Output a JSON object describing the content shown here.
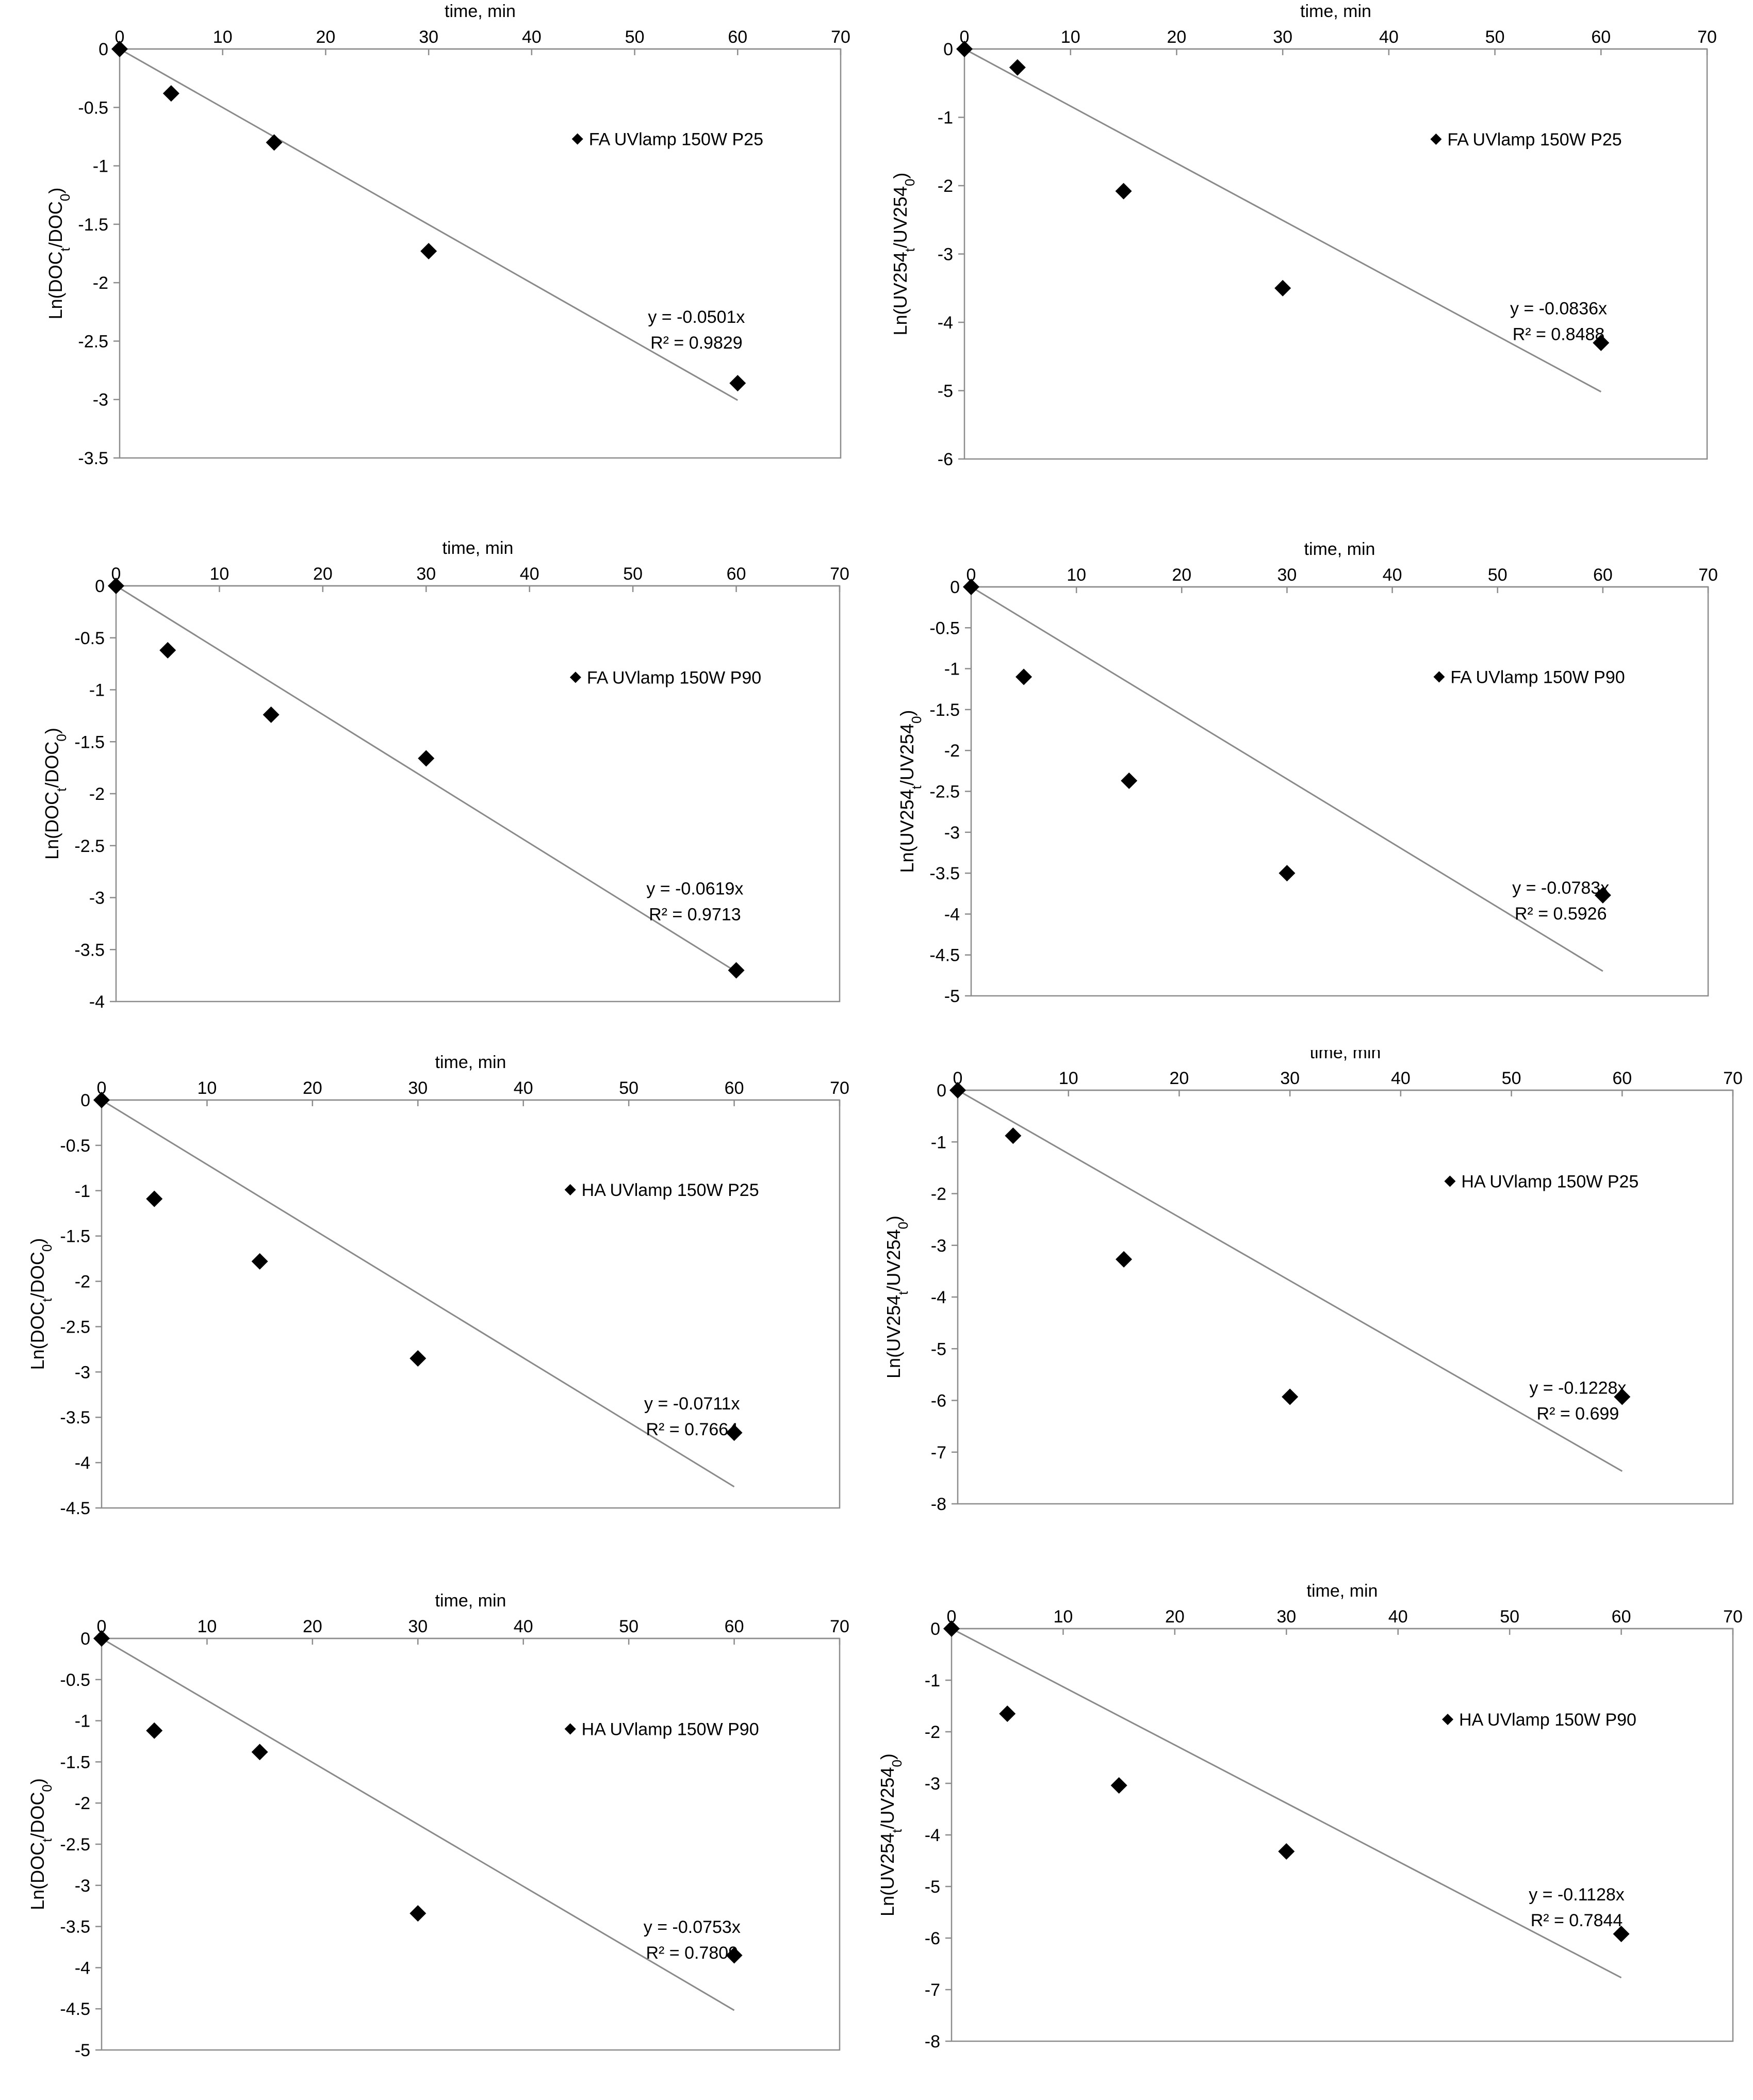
{
  "chart_data": [
    {
      "type": "scatter",
      "xlabel": "time, min",
      "ylabel": {
        "base": "Ln(DOC",
        "sub1": "t",
        "mid": "/DOC",
        "sub2": "0",
        "end": ")"
      },
      "xlim": [
        0,
        70
      ],
      "ylim": [
        -3.5,
        0
      ],
      "xticks": [
        0,
        10,
        20,
        30,
        40,
        50,
        60,
        70
      ],
      "yticks": [
        0,
        -0.5,
        -1,
        -1.5,
        -2,
        -2.5,
        -3,
        -3.5
      ],
      "series": [
        {
          "name": "FA UVlamp 150W P25",
          "x": [
            0,
            5,
            15,
            30,
            60
          ],
          "y": [
            0,
            -0.38,
            -0.8,
            -1.73,
            -2.86
          ]
        }
      ],
      "trendline": {
        "slope": -0.0501,
        "x_end": 60,
        "equation": "y = -0.0501x",
        "r2": "R² = 0.9829"
      },
      "legend_position": "right"
    },
    {
      "type": "scatter",
      "xlabel": "time, min",
      "ylabel": {
        "base": "Ln(UV254",
        "sub1": "t",
        "mid": "/UV254",
        "sub2": "0",
        "end": ")"
      },
      "xlim": [
        0,
        70
      ],
      "ylim": [
        -6,
        0
      ],
      "xticks": [
        0,
        10,
        20,
        30,
        40,
        50,
        60,
        70
      ],
      "yticks": [
        0,
        -1,
        -2,
        -3,
        -4,
        -5,
        -6
      ],
      "series": [
        {
          "name": "FA UVlamp 150W P25",
          "x": [
            0,
            5,
            15,
            30,
            60
          ],
          "y": [
            0,
            -0.27,
            -2.08,
            -3.5,
            -4.3
          ]
        }
      ],
      "trendline": {
        "slope": -0.0836,
        "x_end": 60,
        "equation": "y = -0.0836x",
        "r2": "R² = 0.8488"
      },
      "legend_position": "right"
    },
    {
      "type": "scatter",
      "xlabel": "time, min",
      "ylabel": {
        "base": "Ln(DOC",
        "sub1": "t",
        "mid": "/DOC",
        "sub2": "0",
        "end": ")"
      },
      "xlim": [
        0,
        70
      ],
      "ylim": [
        -4,
        0
      ],
      "xticks": [
        0,
        10,
        20,
        30,
        40,
        50,
        60,
        70
      ],
      "yticks": [
        0,
        -0.5,
        -1,
        -1.5,
        -2,
        -2.5,
        -3,
        -3.5,
        -4
      ],
      "series": [
        {
          "name": "FA UVlamp 150W P90",
          "x": [
            0,
            5,
            15,
            30,
            60
          ],
          "y": [
            0,
            -0.62,
            -1.24,
            -1.66,
            -3.7
          ]
        }
      ],
      "trendline": {
        "slope": -0.0619,
        "x_end": 60,
        "equation": "y = -0.0619x",
        "r2": "R² = 0.9713"
      },
      "legend_position": "right"
    },
    {
      "type": "scatter",
      "xlabel": "time, min",
      "ylabel": {
        "base": "Ln(UV254",
        "sub1": "t",
        "mid": "/UV254",
        "sub2": "0",
        "end": ")"
      },
      "xlim": [
        0,
        70
      ],
      "ylim": [
        -5,
        0
      ],
      "xticks": [
        0,
        10,
        20,
        30,
        40,
        50,
        60,
        70
      ],
      "yticks": [
        0,
        -0.5,
        -1,
        -1.5,
        -2,
        -2.5,
        -3,
        -3.5,
        -4,
        -4.5,
        -5
      ],
      "series": [
        {
          "name": "FA UVlamp 150W P90",
          "x": [
            0,
            5,
            15,
            30,
            60
          ],
          "y": [
            0,
            -1.1,
            -2.37,
            -3.5,
            -3.77
          ]
        }
      ],
      "trendline": {
        "slope": -0.0783,
        "x_end": 60,
        "equation": "y = -0.0783x",
        "r2": "R² = 0.5926"
      },
      "legend_position": "right"
    },
    {
      "type": "scatter",
      "xlabel": "time, min",
      "ylabel": {
        "base": "Ln(DOC",
        "sub1": "t",
        "mid": "/DOC",
        "sub2": "0",
        "end": ")"
      },
      "xlim": [
        0,
        70
      ],
      "ylim": [
        -4.5,
        0
      ],
      "xticks": [
        0,
        10,
        20,
        30,
        40,
        50,
        60,
        70
      ],
      "yticks": [
        0,
        -0.5,
        -1,
        -1.5,
        -2,
        -2.5,
        -3,
        -3.5,
        -4,
        -4.5
      ],
      "series": [
        {
          "name": "HA UVlamp 150W P25",
          "x": [
            0,
            5,
            15,
            30,
            60
          ],
          "y": [
            0,
            -1.09,
            -1.78,
            -2.85,
            -3.67
          ]
        }
      ],
      "trendline": {
        "slope": -0.0711,
        "x_end": 60,
        "equation": "y = -0.0711x",
        "r2": "R² = 0.7664"
      },
      "legend_position": "right"
    },
    {
      "type": "scatter",
      "xlabel": "time, min",
      "ylabel": {
        "base": "Ln(UV254",
        "sub1": "t",
        "mid": "/UV254",
        "sub2": "0",
        "end": ")"
      },
      "xlim": [
        0,
        70
      ],
      "ylim": [
        -8,
        0
      ],
      "xticks": [
        0,
        10,
        20,
        30,
        40,
        50,
        60,
        70
      ],
      "yticks": [
        0,
        -1,
        -2,
        -3,
        -4,
        -5,
        -6,
        -7,
        -8
      ],
      "series": [
        {
          "name": "HA UVlamp 150W P25",
          "x": [
            0,
            5,
            15,
            30,
            60
          ],
          "y": [
            0,
            -0.88,
            -3.27,
            -5.93,
            -5.93
          ]
        }
      ],
      "trendline": {
        "slope": -0.1228,
        "x_end": 60,
        "equation": "y = -0.1228x",
        "r2": "R² = 0.699"
      },
      "legend_position": "right"
    },
    {
      "type": "scatter",
      "xlabel": "time, min",
      "ylabel": {
        "base": "Ln(DOC",
        "sub1": "t",
        "mid": "/DOC",
        "sub2": "0",
        "end": ")"
      },
      "xlim": [
        0,
        70
      ],
      "ylim": [
        -5,
        0
      ],
      "xticks": [
        0,
        10,
        20,
        30,
        40,
        50,
        60,
        70
      ],
      "yticks": [
        0,
        -0.5,
        -1,
        -1.5,
        -2,
        -2.5,
        -3,
        -3.5,
        -4,
        -4.5,
        -5
      ],
      "series": [
        {
          "name": "HA UVlamp 150W P90",
          "x": [
            0,
            5,
            15,
            30,
            60
          ],
          "y": [
            0,
            -1.12,
            -1.38,
            -3.34,
            -3.85
          ]
        }
      ],
      "trendline": {
        "slope": -0.0753,
        "x_end": 60,
        "equation": "y = -0.0753x",
        "r2": "R² = 0.7809"
      },
      "legend_position": "right"
    },
    {
      "type": "scatter",
      "xlabel": "time, min",
      "ylabel": {
        "base": "Ln(UV254",
        "sub1": "t",
        "mid": "/UV254",
        "sub2": "0",
        "end": ")"
      },
      "xlim": [
        0,
        70
      ],
      "ylim": [
        -8,
        0
      ],
      "xticks": [
        0,
        10,
        20,
        30,
        40,
        50,
        60,
        70
      ],
      "yticks": [
        0,
        -1,
        -2,
        -3,
        -4,
        -5,
        -6,
        -7,
        -8
      ],
      "series": [
        {
          "name": "HA UVlamp 150W P90",
          "x": [
            0,
            5,
            15,
            30,
            60
          ],
          "y": [
            0,
            -1.65,
            -3.04,
            -4.32,
            -5.92
          ]
        }
      ],
      "trendline": {
        "slope": -0.1128,
        "x_end": 60,
        "equation": "y = -0.1128x",
        "r2": "R² = 0.7844"
      },
      "legend_position": "right"
    }
  ]
}
